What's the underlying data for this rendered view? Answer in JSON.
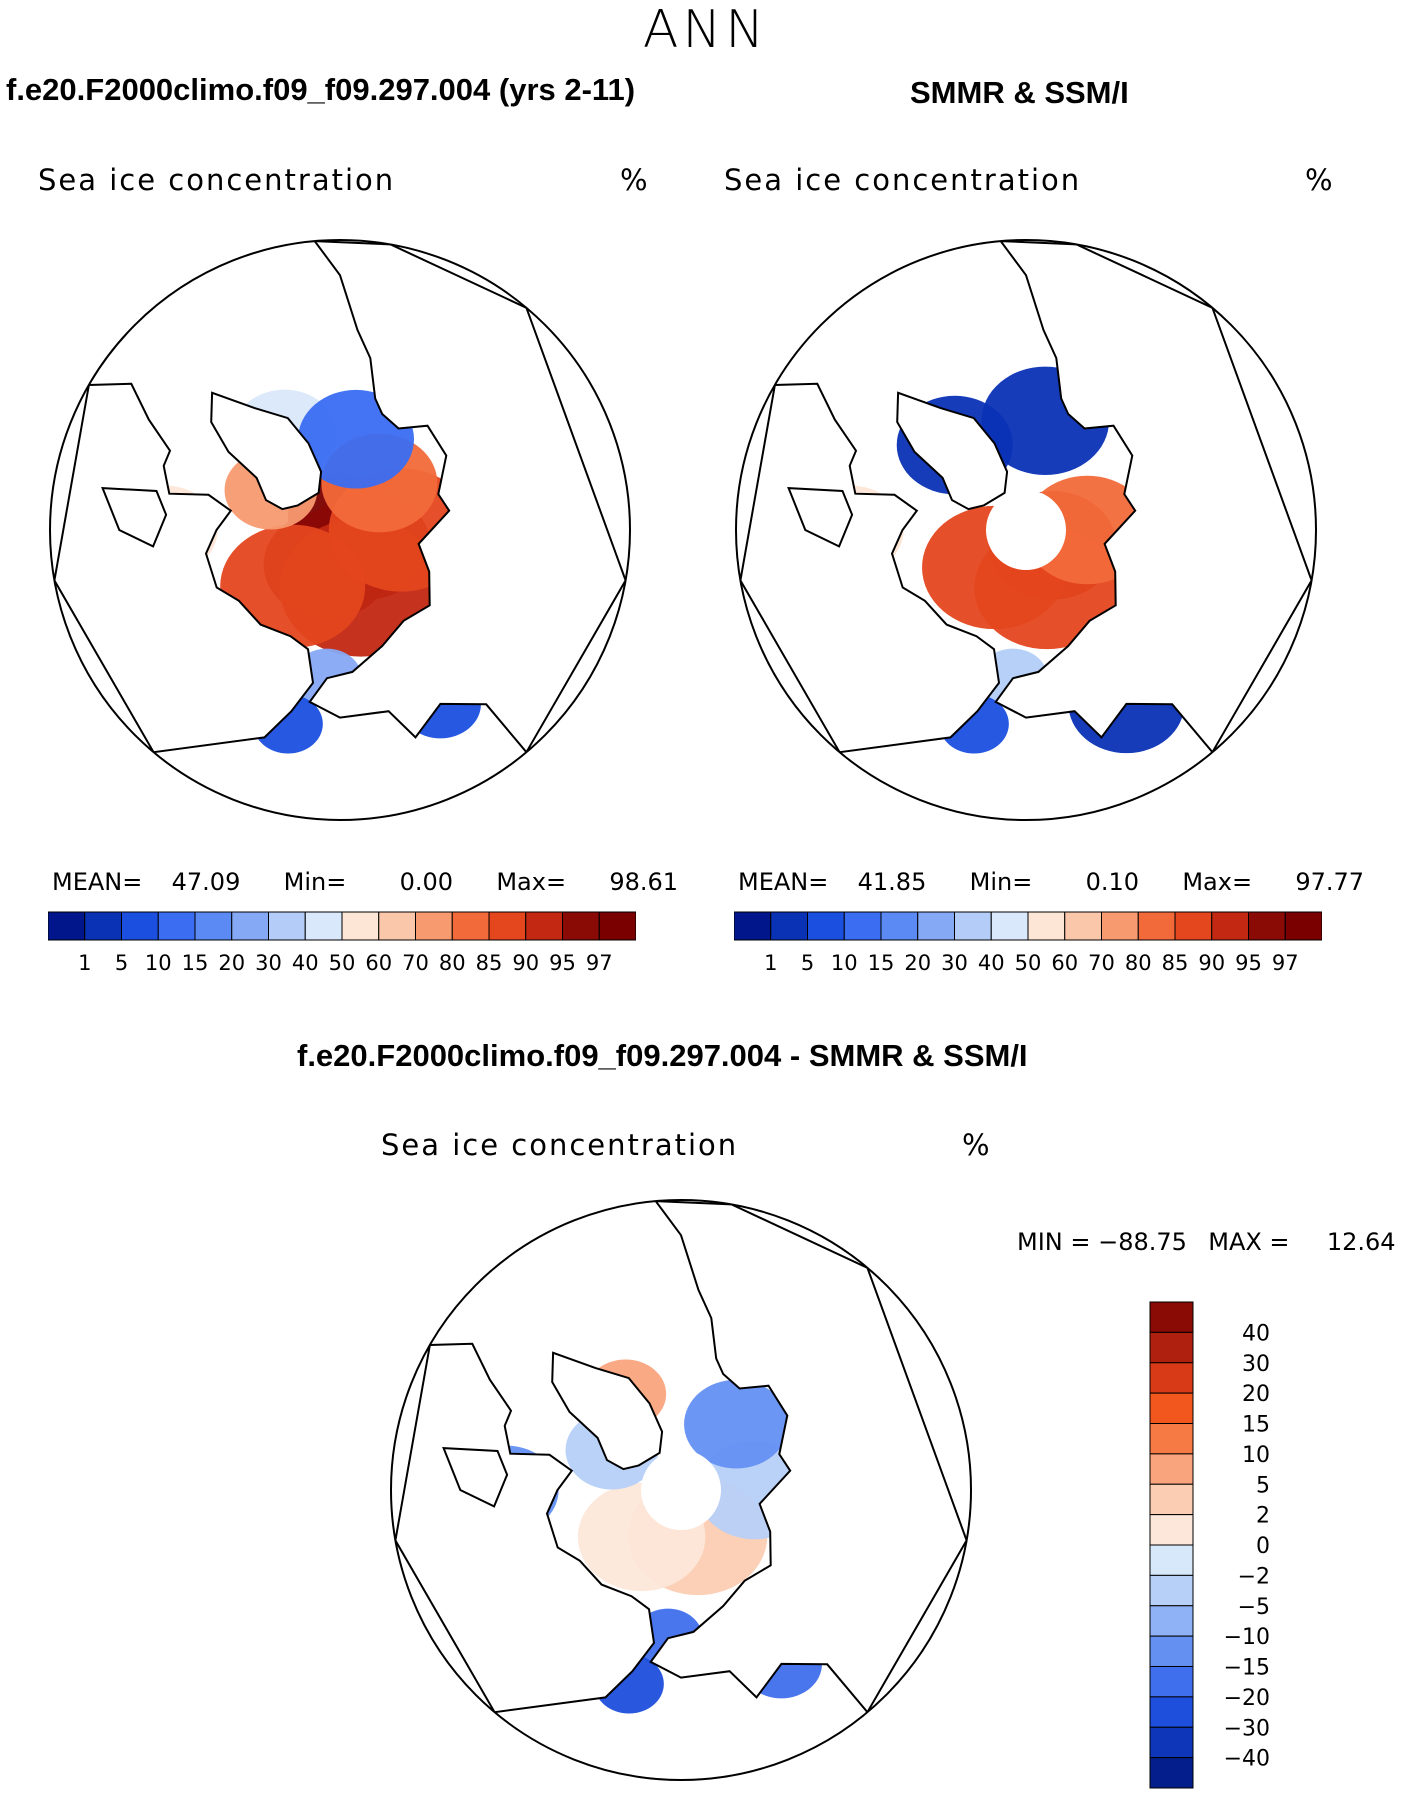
{
  "season": "ANN",
  "panels": {
    "model": {
      "title": "f.e20.F2000climo.f09_f09.297.004 (yrs 2-11)",
      "variable": "Sea ice concentration",
      "units": "%",
      "stats": {
        "mean_label": "MEAN=",
        "mean": "47.09",
        "min_label": "Min=",
        "min": "0.00",
        "max_label": "Max=",
        "max": "98.61"
      }
    },
    "obs": {
      "title": "SMMR & SSM/I",
      "variable": "Sea ice concentration",
      "units": "%",
      "stats": {
        "mean_label": "MEAN=",
        "mean": "41.85",
        "min_label": "Min=",
        "min": "0.10",
        "max_label": "Max=",
        "max": "97.77"
      }
    },
    "diff": {
      "title": "f.e20.F2000climo.f09_f09.297.004 - SMMR & SSM/I",
      "variable": "Sea ice concentration",
      "units": "%",
      "stats": {
        "min_label": "MIN =",
        "min": "−88.75",
        "max_label": "MAX =",
        "max": "12.64"
      }
    }
  },
  "colorbar_main": {
    "levels": [
      "1",
      "5",
      "10",
      "15",
      "20",
      "30",
      "40",
      "50",
      "60",
      "70",
      "80",
      "85",
      "90",
      "95",
      "97"
    ],
    "colors": [
      "#00168a",
      "#0a32b5",
      "#1a4fe0",
      "#3a6df2",
      "#5b8af5",
      "#86a9f6",
      "#b3cdf8",
      "#d9e8fb",
      "#fde6d6",
      "#fbc7aa",
      "#f79a70",
      "#f26a3a",
      "#e4461e",
      "#c22812",
      "#8a0a06",
      "#7a0000"
    ]
  },
  "colorbar_diff": {
    "levels": [
      "40",
      "30",
      "20",
      "15",
      "10",
      "5",
      "2",
      "0",
      "−2",
      "−5",
      "−10",
      "−15",
      "−20",
      "−30",
      "−40"
    ],
    "colors": [
      "#8a0a06",
      "#b0200f",
      "#d83a18",
      "#f2581e",
      "#f57a44",
      "#f9a47c",
      "#fbcdb2",
      "#fde7da",
      "#d8e8fb",
      "#b7d0f8",
      "#8fb1f6",
      "#6490f2",
      "#3f6fec",
      "#1d4fdc",
      "#0d36b8",
      "#041f8c"
    ]
  },
  "maps": {
    "model": {
      "patches": [
        {
          "lon": 0,
          "lat": 88,
          "r": 0.18,
          "val": 97
        },
        {
          "lon": 120,
          "lat": 85,
          "r": 0.22,
          "val": 96
        },
        {
          "lon": 200,
          "lat": 84,
          "r": 0.22,
          "val": 95
        },
        {
          "lon": 160,
          "lat": 80,
          "r": 0.28,
          "val": 90
        },
        {
          "lon": 220,
          "lat": 78,
          "r": 0.25,
          "val": 85
        },
        {
          "lon": 90,
          "lat": 80,
          "r": 0.25,
          "val": 85
        },
        {
          "lon": 40,
          "lat": 80,
          "r": 0.2,
          "val": 80
        },
        {
          "lon": 300,
          "lat": 77,
          "r": 0.16,
          "val": 70
        },
        {
          "lon": 270,
          "lat": 62,
          "r": 0.18,
          "val": 55
        },
        {
          "lon": 330,
          "lat": 72,
          "r": 0.18,
          "val": 40
        },
        {
          "lon": 10,
          "lat": 75,
          "r": 0.2,
          "val": 12
        },
        {
          "lon": 185,
          "lat": 66,
          "r": 0.12,
          "val": 25
        },
        {
          "lon": 150,
          "lat": 58,
          "r": 0.14,
          "val": 8
        },
        {
          "lon": 195,
          "lat": 58,
          "r": 0.12,
          "val": 6
        }
      ]
    },
    "obs": {
      "patches": [
        {
          "lon": 120,
          "lat": 85,
          "r": 0.22,
          "val": 92
        },
        {
          "lon": 220,
          "lat": 82,
          "r": 0.25,
          "val": 88
        },
        {
          "lon": 160,
          "lat": 80,
          "r": 0.25,
          "val": 85
        },
        {
          "lon": 90,
          "lat": 80,
          "r": 0.22,
          "val": 82
        },
        {
          "lon": 270,
          "lat": 62,
          "r": 0.18,
          "val": 55
        },
        {
          "lon": 320,
          "lat": 72,
          "r": 0.2,
          "val": 3
        },
        {
          "lon": 10,
          "lat": 72,
          "r": 0.22,
          "val": 2
        },
        {
          "lon": 185,
          "lat": 66,
          "r": 0.12,
          "val": 30
        },
        {
          "lon": 150,
          "lat": 58,
          "r": 0.2,
          "val": 2
        },
        {
          "lon": 195,
          "lat": 58,
          "r": 0.12,
          "val": 8
        }
      ]
    },
    "diff": {
      "patches": [
        {
          "lon": 160,
          "lat": 82,
          "r": 0.24,
          "val": 2
        },
        {
          "lon": 220,
          "lat": 80,
          "r": 0.22,
          "val": 1
        },
        {
          "lon": 90,
          "lat": 78,
          "r": 0.2,
          "val": -5
        },
        {
          "lon": 300,
          "lat": 77,
          "r": 0.16,
          "val": -3
        },
        {
          "lon": 270,
          "lat": 62,
          "r": 0.18,
          "val": -12
        },
        {
          "lon": 40,
          "lat": 76,
          "r": 0.18,
          "val": -14
        },
        {
          "lon": 330,
          "lat": 72,
          "r": 0.14,
          "val": 8
        },
        {
          "lon": 185,
          "lat": 66,
          "r": 0.12,
          "val": -18
        },
        {
          "lon": 150,
          "lat": 58,
          "r": 0.14,
          "val": -20
        },
        {
          "lon": 195,
          "lat": 58,
          "r": 0.12,
          "val": -22
        }
      ]
    }
  }
}
